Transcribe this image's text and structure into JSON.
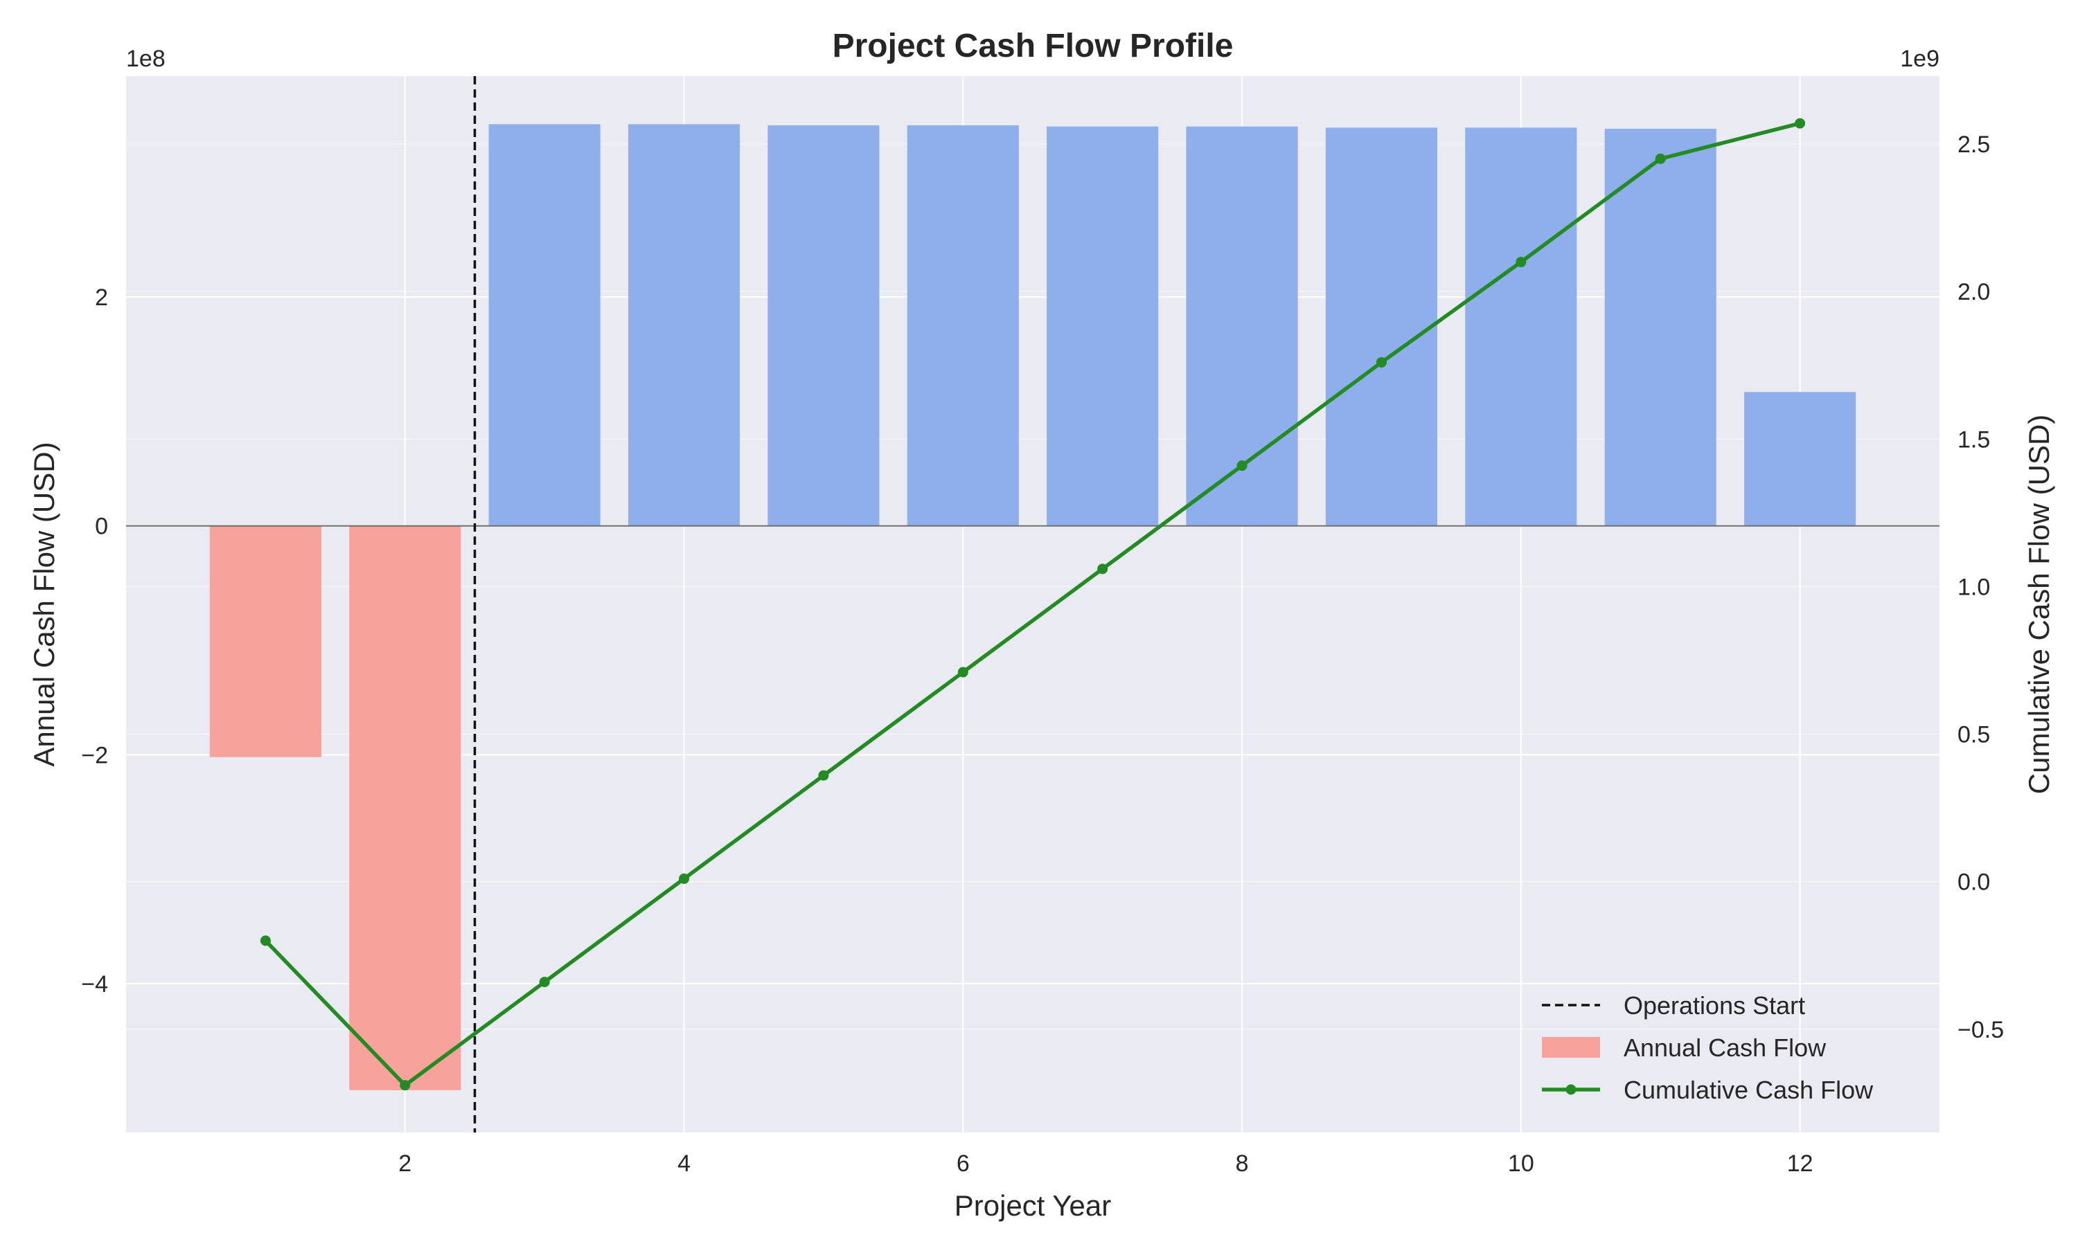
{
  "chart_data": {
    "type": "bar",
    "title": "Project Cash Flow Profile",
    "xlabel": "Project Year",
    "ylabel": "Annual Cash Flow (USD)",
    "y2label": "Cumulative Cash Flow (USD)",
    "y_offset_label": "1e8",
    "y2_offset_label": "1e9",
    "xlim": [
      0,
      13
    ],
    "ylim": [
      -5.3,
      3.93
    ],
    "y2lim": [
      -0.85,
      2.73
    ],
    "x_ticks": [
      2,
      4,
      6,
      8,
      10,
      12
    ],
    "y_ticks": [
      -4,
      -2,
      0,
      2
    ],
    "y_tick_labels": [
      "−4",
      "−2",
      "0",
      "2"
    ],
    "y2_ticks": [
      -0.5,
      0.0,
      0.5,
      1.0,
      1.5,
      2.0,
      2.5
    ],
    "y2_tick_labels": [
      "−0.5",
      "0.0",
      "0.5",
      "1.0",
      "1.5",
      "2.0",
      "2.5"
    ],
    "grid": true,
    "legend_position": "bottom-right",
    "operations_start_x": 2.5,
    "series": [
      {
        "name": "Annual Cash Flow",
        "kind": "bar",
        "axis": "left",
        "x": [
          1,
          2,
          3,
          4,
          5,
          6,
          7,
          8,
          9,
          10,
          11,
          12
        ],
        "values": [
          -2.02,
          -4.93,
          3.51,
          3.51,
          3.5,
          3.5,
          3.49,
          3.49,
          3.48,
          3.48,
          3.47,
          1.17
        ]
      },
      {
        "name": "Cumulative Cash Flow",
        "kind": "line",
        "axis": "right",
        "x": [
          1,
          2,
          3,
          4,
          5,
          6,
          7,
          8,
          9,
          10,
          11,
          12
        ],
        "values": [
          -0.2,
          -0.69,
          -0.34,
          0.01,
          0.36,
          0.71,
          1.06,
          1.41,
          1.76,
          2.1,
          2.45,
          2.57
        ]
      }
    ],
    "legend": [
      "Operations Start",
      "Annual Cash Flow",
      "Cumulative Cash Flow"
    ],
    "colors": {
      "negative_bar": "#f7a29a",
      "positive_bar": "#8eaeec",
      "line": "#228b22",
      "plot_bg": "#eaeaf2",
      "grid": "#ffffff",
      "zero_line": "#6e6e6e",
      "vline": "#111111"
    }
  }
}
